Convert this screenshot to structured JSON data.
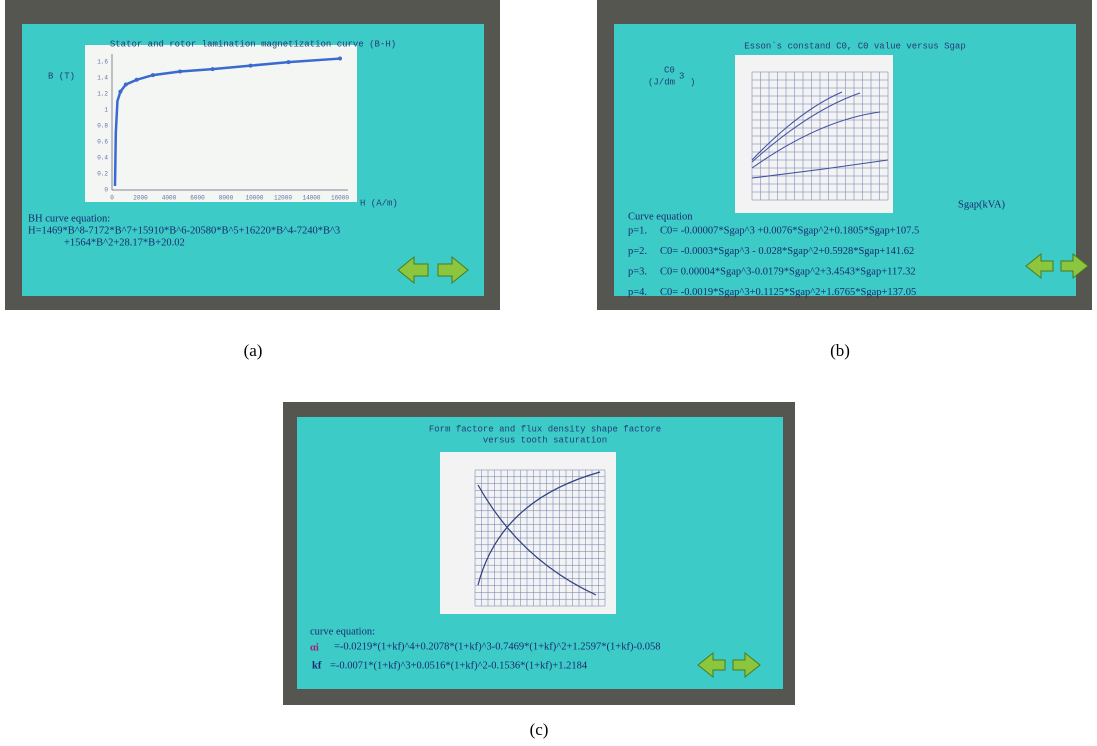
{
  "panels": [
    {
      "label": "(a)",
      "title": "Stator and rotor lamination magnetization curve (B-H)",
      "y_axis_label": "B (T)",
      "x_axis_label": "H (A/m)",
      "x_ticks": [
        "0",
        "2000",
        "4000",
        "6000",
        "8000",
        "10000",
        "12000",
        "14000",
        "16000"
      ],
      "y_ticks": [
        "0",
        "0.2",
        "0.4",
        "0.6",
        "0.8",
        "1",
        "1.2",
        "1.4",
        "1.6"
      ],
      "equation_heading": "BH curve equation:",
      "equation_lines": [
        "H=1469*B^8-7172*B^7+15910*B^6-20580*B^5+16220*B^4-7240*B^3",
        "+1564*B^2+28.17*B+20.02"
      ]
    },
    {
      "label": "(b)",
      "title": "Esson`s constand C0, C0 value versus Sgap",
      "y_axis_label": "C0",
      "y_axis_unit": "(J/dm",
      "y_axis_unit_exponent": "3",
      "y_axis_unit_close": ")",
      "x_axis_label": "Sgap(kVA)",
      "equation_heading": "Curve equation",
      "equations": [
        {
          "key": "p=1.",
          "text": "C0= -0.00007*Sgap^3 +0.0076*Sgap^2+0.1805*Sgap+107.5"
        },
        {
          "key": "p=2.",
          "text": "C0= -0.0003*Sgap^3 - 0.028*Sgap^2+0.5928*Sgap+141.62"
        },
        {
          "key": "p=3.",
          "text": "C0= 0.00004*Sgap^3-0.0179*Sgap^2+3.4543*Sgap+117.32"
        },
        {
          "key": "p=4.",
          "text": "C0= -0.0019*Sgap^3+0.1125*Sgap^2+1.6765*Sgap+137.05"
        }
      ]
    },
    {
      "label": "(c)",
      "title_lines": [
        "Form factore and flux density shape factore",
        "versus tooth saturation"
      ],
      "equation_heading": "curve equation:",
      "equations": [
        {
          "key": "αi",
          "text": "=-0.0219*(1+kf)^4+0.2078*(1+kf)^3-0.7469*(1+kf)^2+1.2597*(1+kf)-0.058"
        },
        {
          "key": "kf",
          "text": "=-0.0071*(1+kf)^3+0.0516*(1+kf)^2-0.1536*(1+kf)+1.2184"
        }
      ]
    }
  ]
}
